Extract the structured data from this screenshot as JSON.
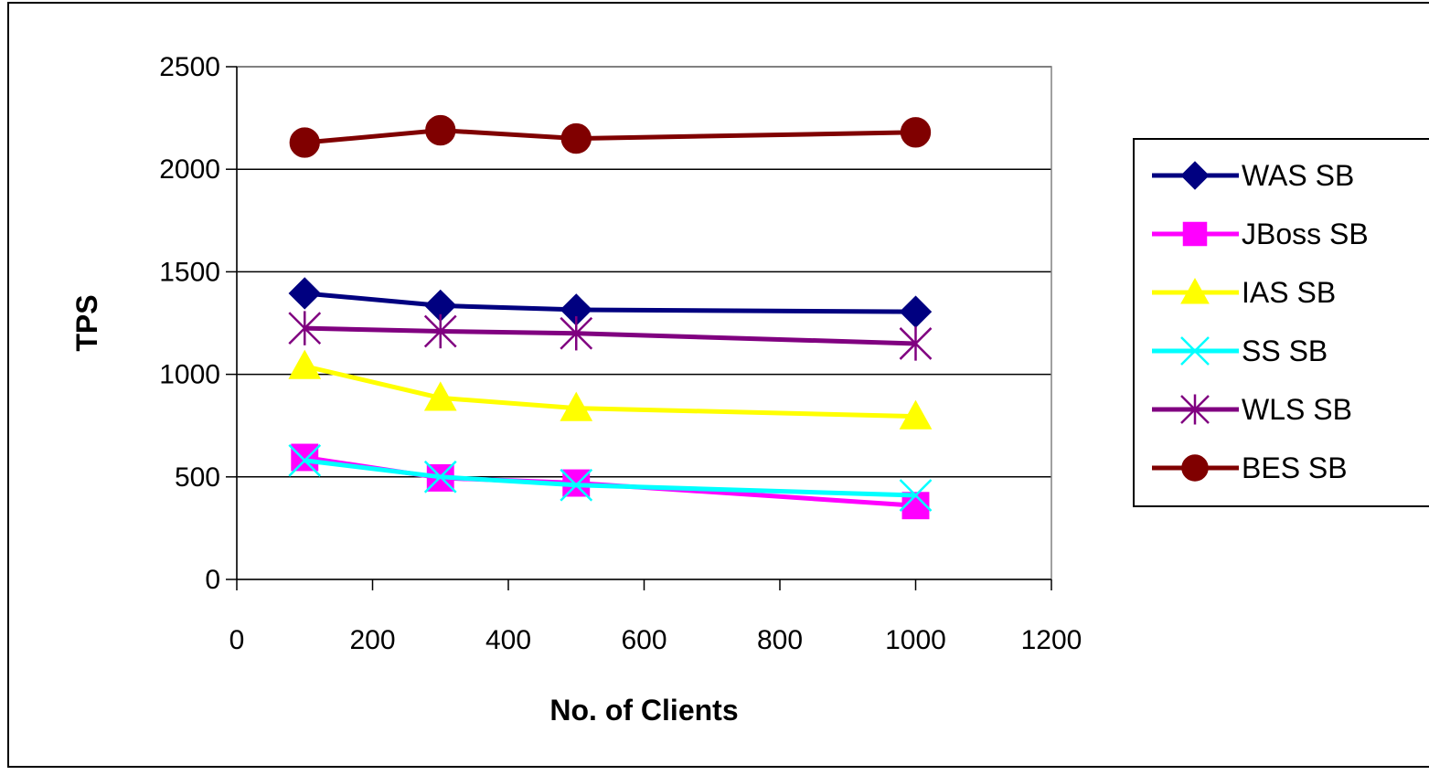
{
  "chart_data": {
    "type": "line",
    "xlabel": "No. of Clients",
    "ylabel": "TPS",
    "xlim": [
      0,
      1200
    ],
    "ylim": [
      0,
      2500
    ],
    "xticks": [
      0,
      200,
      400,
      600,
      800,
      1000,
      1200
    ],
    "yticks": [
      0,
      500,
      1000,
      1500,
      2000,
      2500
    ],
    "grid": "horizontal",
    "legend_position": "right",
    "series": [
      {
        "name": "WAS SB",
        "color": "#000080",
        "marker": "diamond",
        "x": [
          100,
          300,
          500,
          1000
        ],
        "y": [
          1395,
          1335,
          1315,
          1305
        ]
      },
      {
        "name": "JBoss SB",
        "color": "#ff00ff",
        "marker": "square",
        "x": [
          100,
          300,
          500,
          1000
        ],
        "y": [
          595,
          495,
          470,
          360
        ]
      },
      {
        "name": "IAS SB",
        "color": "#ffff00",
        "marker": "triangle",
        "x": [
          100,
          300,
          500,
          1000
        ],
        "y": [
          1040,
          885,
          835,
          795
        ]
      },
      {
        "name": "SS SB",
        "color": "#00ffff",
        "marker": "x",
        "x": [
          100,
          300,
          500,
          1000
        ],
        "y": [
          580,
          500,
          460,
          410
        ]
      },
      {
        "name": "WLS SB",
        "color": "#800080",
        "marker": "star",
        "x": [
          100,
          300,
          500,
          1000
        ],
        "y": [
          1225,
          1210,
          1200,
          1150
        ]
      },
      {
        "name": "BES SB",
        "color": "#800000",
        "marker": "circle",
        "x": [
          100,
          300,
          500,
          1000
        ],
        "y": [
          2130,
          2190,
          2150,
          2180
        ]
      }
    ]
  }
}
